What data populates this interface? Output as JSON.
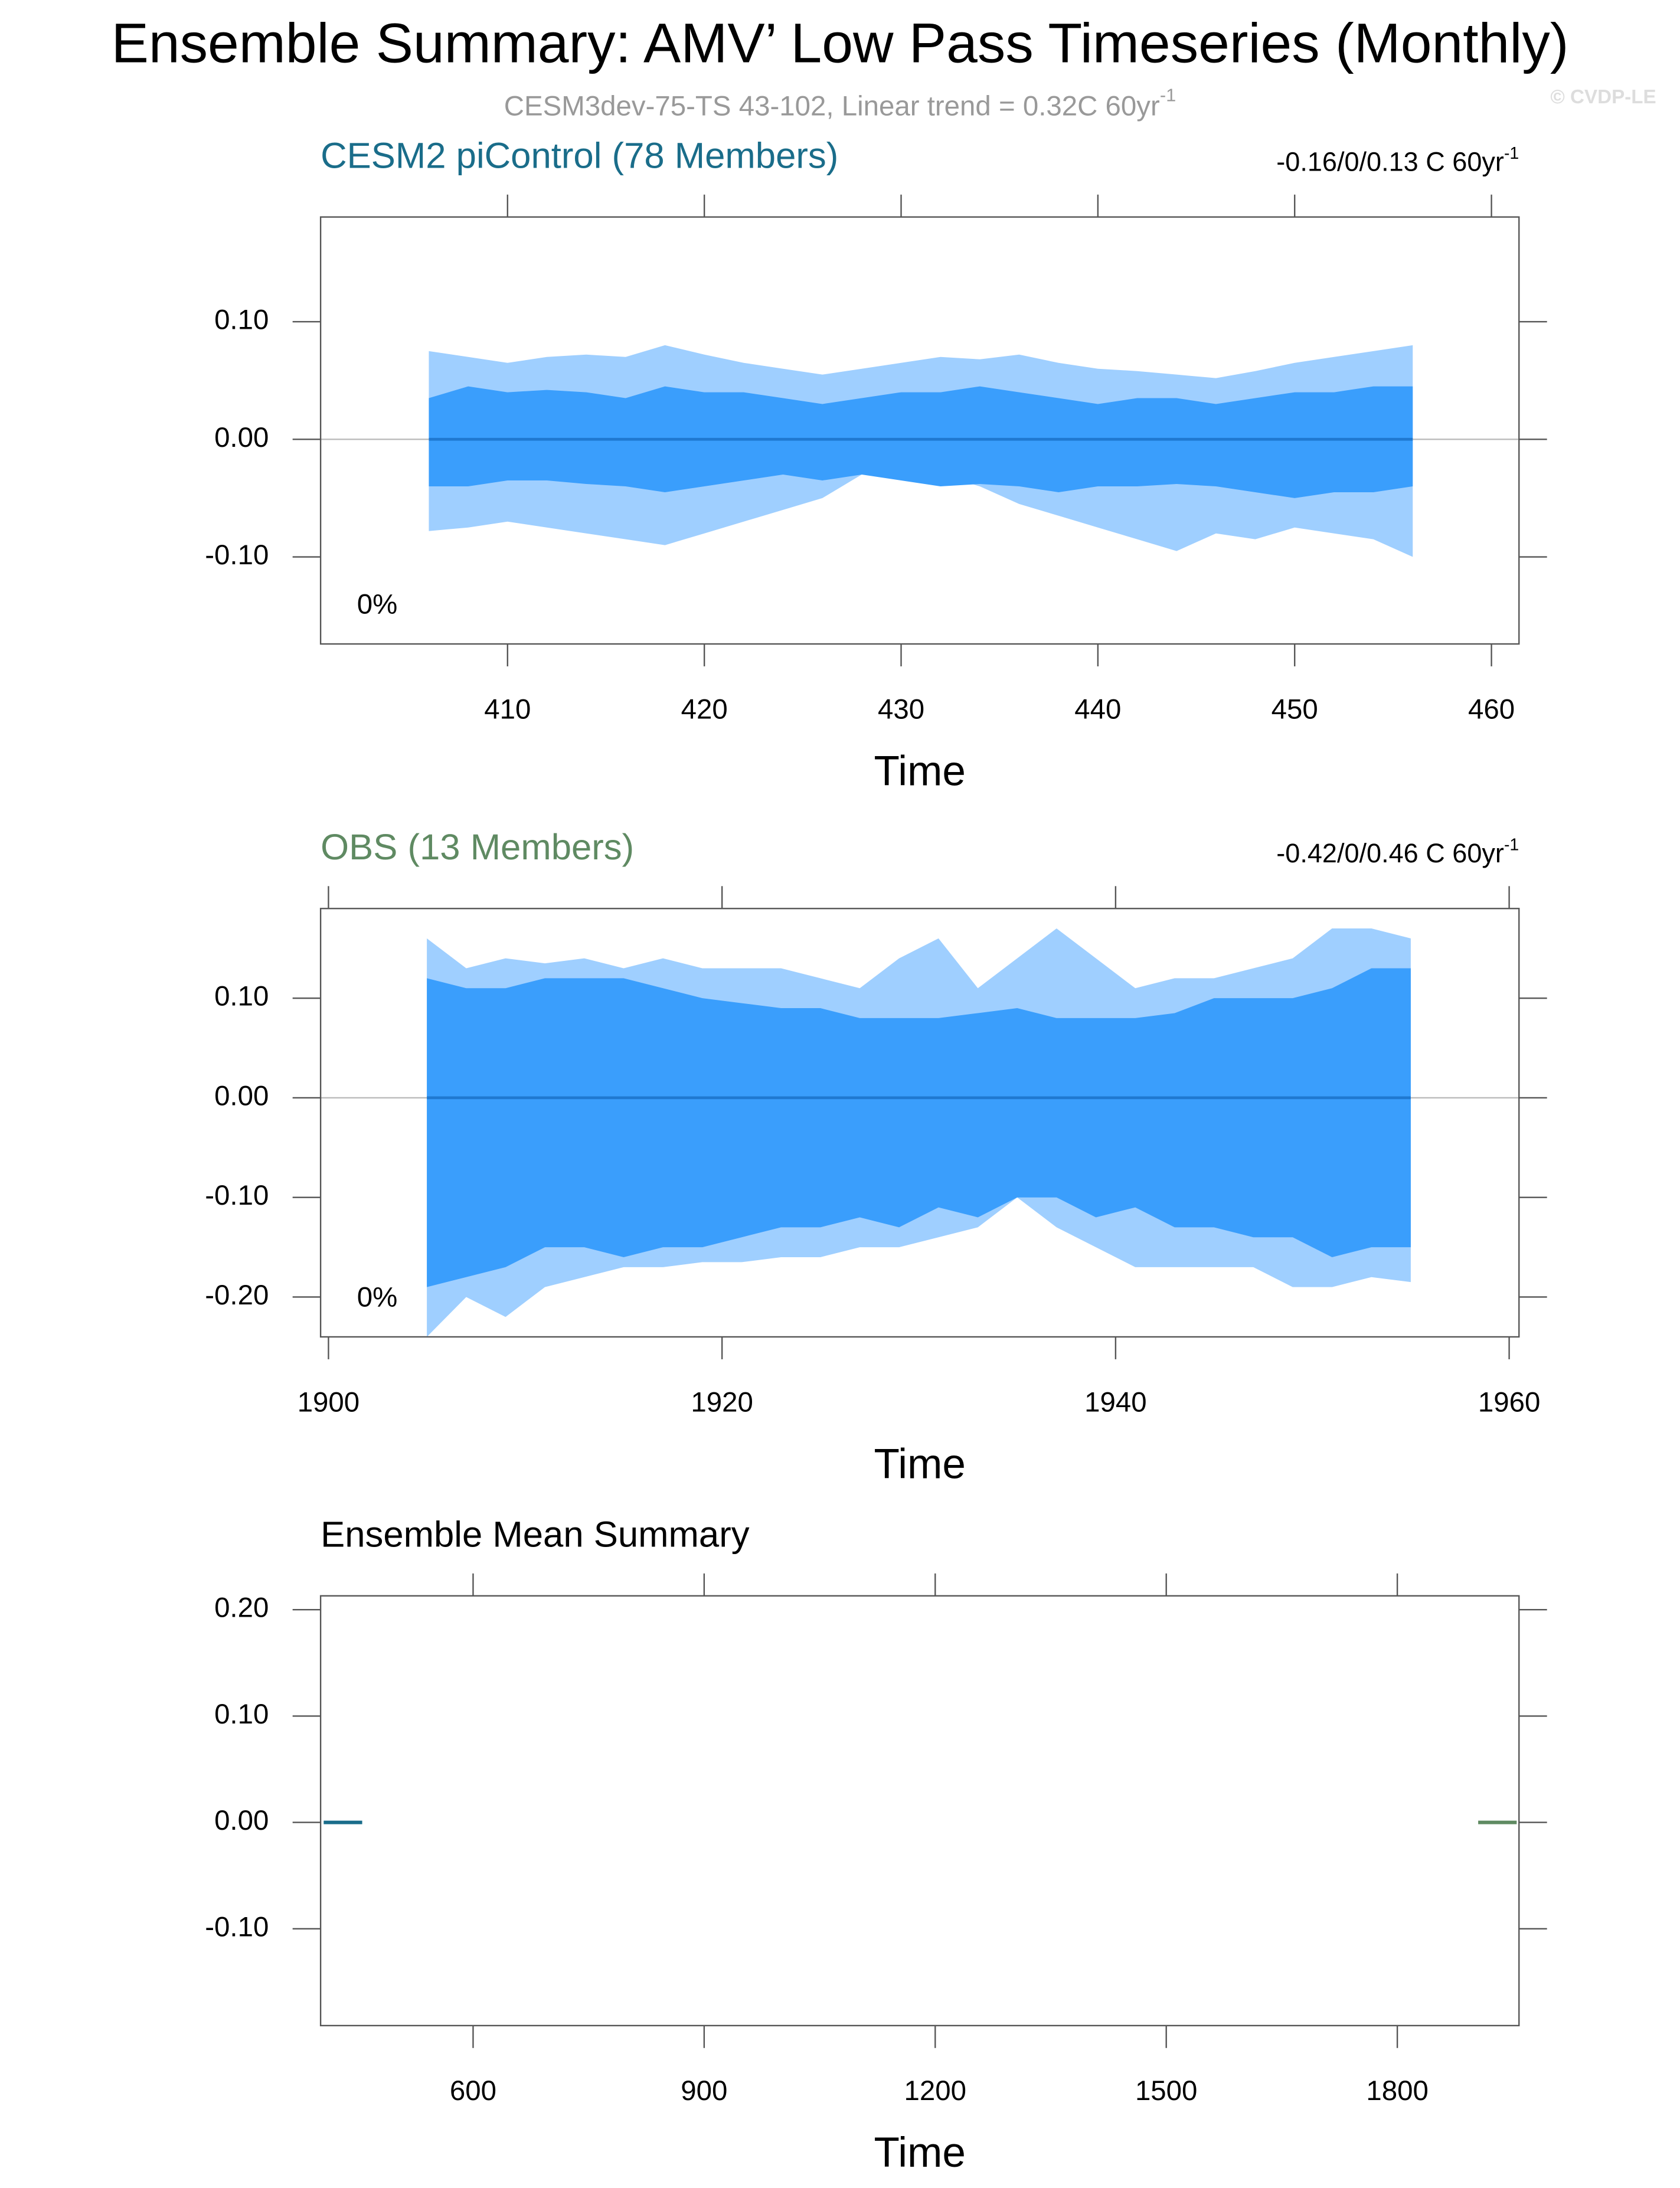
{
  "title": "Ensemble Summary: AMV’ Low Pass Timeseries (Monthly)",
  "subtitle": "CESM3dev-75-TS 43-102, Linear trend = 0.32C 60yr",
  "subtitle_sup": "-1",
  "credit": "© CVDP-LE",
  "chart_data": [
    {
      "type": "band",
      "title": "CESM2 piControl (78 Members)",
      "title_color": "#1a6d8a",
      "annotation": "-0.16/0/0.13 C 60yr",
      "annotation_sup": "-1",
      "corner_label": "0%",
      "xlabel": "Time",
      "xlim": [
        400.5,
        461.4
      ],
      "xticks": [
        410,
        420,
        430,
        440,
        450,
        460
      ],
      "ylim": [
        -0.174,
        0.189
      ],
      "yticks": [
        {
          "value": 0.1,
          "label": "0.10"
        },
        {
          "value": 0,
          "label": "0.00"
        },
        {
          "value": -0.1,
          "label": "-0.10"
        }
      ],
      "zero_line": true,
      "x": [
        406,
        408,
        410,
        412,
        414,
        416,
        418,
        420,
        422,
        424,
        426,
        428,
        430,
        432,
        434,
        436,
        438,
        440,
        442,
        444,
        446,
        448,
        450,
        452,
        454,
        456
      ],
      "series": [
        {
          "color": "#9fcfff",
          "upper": [
            0.075,
            0.07,
            0.065,
            0.07,
            0.072,
            0.07,
            0.08,
            0.072,
            0.065,
            0.06,
            0.055,
            0.06,
            0.065,
            0.07,
            0.068,
            0.072,
            0.065,
            0.06,
            0.058,
            0.055,
            0.052,
            0.058,
            0.065,
            0.07,
            0.075,
            0.08
          ],
          "lower": [
            -0.078,
            -0.075,
            -0.07,
            -0.075,
            -0.08,
            -0.085,
            -0.09,
            -0.08,
            -0.07,
            -0.06,
            -0.05,
            -0.03,
            -0.025,
            -0.03,
            -0.04,
            -0.055,
            -0.065,
            -0.075,
            -0.085,
            -0.095,
            -0.08,
            -0.085,
            -0.075,
            -0.08,
            -0.085,
            -0.1
          ]
        },
        {
          "color": "#3a9efc",
          "upper": [
            0.035,
            0.045,
            0.04,
            0.042,
            0.04,
            0.035,
            0.045,
            0.04,
            0.04,
            0.035,
            0.03,
            0.035,
            0.04,
            0.04,
            0.045,
            0.04,
            0.035,
            0.03,
            0.035,
            0.035,
            0.03,
            0.035,
            0.04,
            0.04,
            0.045,
            0.045
          ],
          "lower": [
            -0.04,
            -0.04,
            -0.035,
            -0.035,
            -0.038,
            -0.04,
            -0.045,
            -0.04,
            -0.035,
            -0.03,
            -0.035,
            -0.03,
            -0.035,
            -0.04,
            -0.038,
            -0.04,
            -0.045,
            -0.04,
            -0.04,
            -0.038,
            -0.04,
            -0.045,
            -0.05,
            -0.045,
            -0.045,
            -0.04
          ]
        }
      ],
      "mean_line": {
        "color": "#1f78d0",
        "values": [
          0,
          0,
          0,
          0,
          0,
          0,
          0,
          0,
          0,
          0,
          0,
          0,
          0,
          0,
          0,
          0,
          0,
          0,
          0,
          0,
          0,
          0,
          0,
          0,
          0,
          0
        ]
      }
    },
    {
      "type": "band",
      "title": "OBS (13 Members)",
      "title_color": "#5f8a62",
      "annotation": "-0.42/0/0.46 C 60yr",
      "annotation_sup": "-1",
      "corner_label": "0%",
      "xlabel": "Time",
      "xlim": [
        1899.6,
        1960.5
      ],
      "xticks": [
        1900,
        1920,
        1940,
        1960
      ],
      "ylim": [
        -0.24,
        0.19
      ],
      "yticks": [
        {
          "value": 0.1,
          "label": "0.10"
        },
        {
          "value": 0,
          "label": "0.00"
        },
        {
          "value": -0.1,
          "label": "-0.10"
        },
        {
          "value": -0.2,
          "label": "-0.20"
        }
      ],
      "zero_line": true,
      "x": [
        1905,
        1907,
        1909,
        1911,
        1913,
        1915,
        1917,
        1919,
        1921,
        1923,
        1925,
        1927,
        1929,
        1931,
        1933,
        1935,
        1937,
        1939,
        1941,
        1943,
        1945,
        1947,
        1949,
        1951,
        1953,
        1955
      ],
      "series": [
        {
          "color": "#9fcfff",
          "upper": [
            0.16,
            0.13,
            0.14,
            0.135,
            0.14,
            0.13,
            0.14,
            0.13,
            0.13,
            0.13,
            0.12,
            0.11,
            0.14,
            0.16,
            0.11,
            0.14,
            0.17,
            0.14,
            0.11,
            0.12,
            0.12,
            0.13,
            0.14,
            0.17,
            0.17,
            0.16
          ],
          "lower": [
            -0.24,
            -0.2,
            -0.22,
            -0.19,
            -0.18,
            -0.17,
            -0.17,
            -0.165,
            -0.165,
            -0.16,
            -0.16,
            -0.15,
            -0.15,
            -0.14,
            -0.13,
            -0.1,
            -0.13,
            -0.15,
            -0.17,
            -0.17,
            -0.17,
            -0.17,
            -0.19,
            -0.19,
            -0.18,
            -0.185
          ]
        },
        {
          "color": "#3a9efc",
          "upper": [
            0.12,
            0.11,
            0.11,
            0.12,
            0.12,
            0.12,
            0.11,
            0.1,
            0.095,
            0.09,
            0.09,
            0.08,
            0.08,
            0.08,
            0.085,
            0.09,
            0.08,
            0.08,
            0.08,
            0.085,
            0.1,
            0.1,
            0.1,
            0.11,
            0.13,
            0.13
          ],
          "lower": [
            -0.19,
            -0.18,
            -0.17,
            -0.15,
            -0.15,
            -0.16,
            -0.15,
            -0.15,
            -0.14,
            -0.13,
            -0.13,
            -0.12,
            -0.13,
            -0.11,
            -0.12,
            -0.1,
            -0.1,
            -0.12,
            -0.11,
            -0.13,
            -0.13,
            -0.14,
            -0.14,
            -0.16,
            -0.15,
            -0.15
          ]
        }
      ],
      "mean_line": {
        "color": "#1f78d0",
        "values": [
          0,
          0,
          0,
          0,
          0,
          0,
          0,
          0,
          0,
          0,
          0,
          0,
          0,
          0,
          0,
          0,
          0,
          0,
          0,
          0,
          0,
          0,
          0,
          0,
          0,
          0
        ]
      }
    },
    {
      "type": "line",
      "title": "Ensemble Mean Summary",
      "title_color": "#000000",
      "xlabel": "Time",
      "xlim": [
        402,
        1958
      ],
      "xticks": [
        600,
        900,
        1200,
        1500,
        1800
      ],
      "ylim": [
        -0.191,
        0.213
      ],
      "yticks": [
        {
          "value": 0.2,
          "label": "0.20"
        },
        {
          "value": 0.1,
          "label": "0.10"
        },
        {
          "value": 0,
          "label": "0.00"
        },
        {
          "value": -0.1,
          "label": "-0.10"
        }
      ],
      "series": [
        {
          "color": "#1a6d8a",
          "x": [
            406,
            456
          ],
          "values": [
            0,
            0
          ]
        },
        {
          "color": "#5f8a62",
          "x": [
            1905,
            1955
          ],
          "values": [
            0,
            0
          ]
        }
      ]
    }
  ]
}
